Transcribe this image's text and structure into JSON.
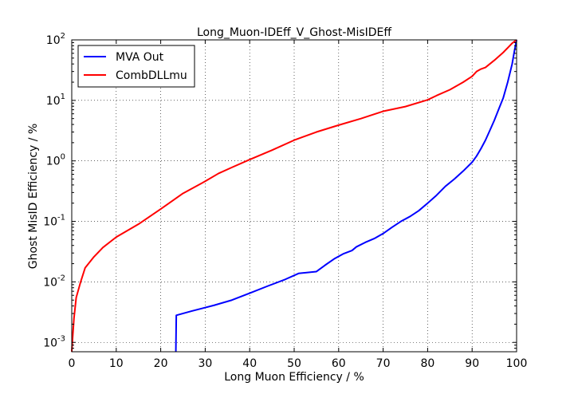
{
  "chart_data": {
    "type": "line",
    "title": "Long_Muon-IDEff_V_Ghost-MisIDEff",
    "xlabel": "Long Muon Efficiency / %",
    "ylabel": "Ghost MisID Efficiency / %",
    "xlim": [
      0,
      100
    ],
    "ylim": [
      0.0007,
      100
    ],
    "yscale": "log",
    "grid": true,
    "legend_position": "top-left",
    "x_ticks": [
      "0",
      "10",
      "20",
      "30",
      "40",
      "50",
      "60",
      "70",
      "80",
      "90",
      "100"
    ],
    "x_tick_values": [
      0,
      10,
      20,
      30,
      40,
      50,
      60,
      70,
      80,
      90,
      100
    ],
    "y_ticks": [
      {
        "value": 0.001,
        "base": "10",
        "exp": "-3"
      },
      {
        "value": 0.01,
        "base": "10",
        "exp": "-2"
      },
      {
        "value": 0.1,
        "base": "10",
        "exp": "-1"
      },
      {
        "value": 1,
        "base": "10",
        "exp": "0"
      },
      {
        "value": 10,
        "base": "10",
        "exp": "1"
      },
      {
        "value": 100,
        "base": "10",
        "exp": "2"
      }
    ],
    "series": [
      {
        "name": "MVA Out",
        "color": "#0000ff",
        "x": [
          23.4,
          23.5,
          27,
          32,
          36,
          40,
          44,
          48,
          51,
          55,
          57,
          59,
          61,
          63,
          64,
          66,
          68,
          70,
          72,
          74,
          76,
          78,
          80,
          82,
          84,
          86,
          88,
          90,
          91,
          92,
          93,
          94,
          95,
          96,
          97,
          98,
          99,
          99.5,
          100
        ],
        "y": [
          0.0007,
          0.0028,
          0.0033,
          0.0041,
          0.005,
          0.0065,
          0.0085,
          0.011,
          0.0138,
          0.0148,
          0.019,
          0.024,
          0.029,
          0.033,
          0.038,
          0.045,
          0.052,
          0.063,
          0.08,
          0.1,
          0.12,
          0.15,
          0.2,
          0.27,
          0.38,
          0.5,
          0.68,
          0.95,
          1.2,
          1.6,
          2.2,
          3.2,
          4.7,
          7.2,
          11,
          20,
          40,
          65,
          100
        ]
      },
      {
        "name": "CombDLLmu",
        "color": "#ff0000",
        "x": [
          0,
          0.2,
          0.5,
          1,
          2,
          3,
          5,
          7,
          10,
          15,
          20,
          25,
          30,
          33,
          36,
          40,
          45,
          50,
          55,
          60,
          65,
          68,
          70,
          75,
          80,
          82,
          85,
          88,
          90,
          91,
          92,
          93,
          95,
          97,
          99,
          100
        ],
        "y": [
          0.0007,
          0.0012,
          0.0025,
          0.0055,
          0.01,
          0.017,
          0.026,
          0.037,
          0.055,
          0.09,
          0.16,
          0.29,
          0.46,
          0.62,
          0.78,
          1.05,
          1.5,
          2.2,
          3.0,
          3.9,
          5.0,
          5.9,
          6.6,
          7.9,
          10.2,
          12,
          15,
          20,
          25,
          30,
          33,
          35,
          46,
          62,
          88,
          100
        ]
      }
    ]
  }
}
